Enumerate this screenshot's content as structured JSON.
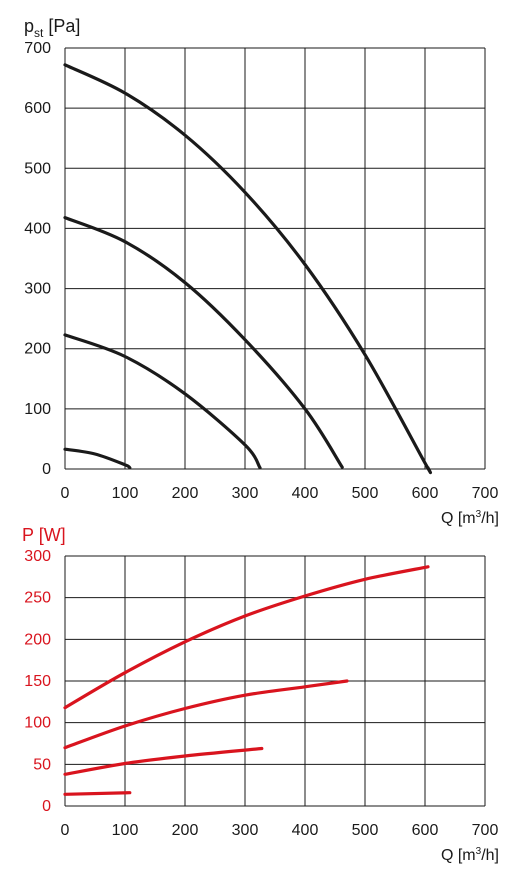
{
  "colors": {
    "pressure_curves": "#1a1a1a",
    "power_curves": "#d9141e",
    "grid": "#1a1a1a",
    "power_text": "#d9141e",
    "pressure_text": "#1a1a1a"
  },
  "chart_data": [
    {
      "type": "line",
      "title": "",
      "ylabel": {
        "main": "p",
        "sub": "st",
        "unit": " [Pa]"
      },
      "xlabel": {
        "pre": "Q [m",
        "sup": "3",
        "post": "/h]"
      },
      "xlim": [
        0,
        700
      ],
      "ylim": [
        0,
        700
      ],
      "xticks": [
        "0",
        "100",
        "200",
        "300",
        "400",
        "500",
        "600",
        "700"
      ],
      "yticks": [
        "0",
        "100",
        "200",
        "300",
        "400",
        "500",
        "600",
        "700"
      ],
      "grid": true,
      "series": [
        {
          "x": [
            0,
            100,
            200,
            300,
            400,
            500,
            600,
            605
          ],
          "y": [
            672,
            625,
            555,
            460,
            340,
            190,
            10,
            2
          ]
        },
        {
          "x": [
            0,
            100,
            200,
            300,
            400,
            462
          ],
          "y": [
            418,
            378,
            310,
            215,
            100,
            3
          ]
        },
        {
          "x": [
            0,
            100,
            200,
            300,
            325
          ],
          "y": [
            223,
            187,
            125,
            40,
            2
          ]
        },
        {
          "x": [
            0,
            50,
            100,
            108
          ],
          "y": [
            33,
            25,
            7,
            2
          ]
        }
      ]
    },
    {
      "type": "line",
      "title": "",
      "ylabel": {
        "main": "P",
        "sub": "",
        "unit": " [W]"
      },
      "xlabel": {
        "pre": "Q [m",
        "sup": "3",
        "post": "/h]"
      },
      "xlim": [
        0,
        700
      ],
      "ylim": [
        0,
        300
      ],
      "xticks": [
        "0",
        "100",
        "200",
        "300",
        "400",
        "500",
        "600",
        "700"
      ],
      "yticks": [
        "0",
        "50",
        "100",
        "150",
        "200",
        "250",
        "300"
      ],
      "grid": true,
      "series": [
        {
          "x": [
            0,
            100,
            200,
            300,
            400,
            500,
            605
          ],
          "y": [
            118,
            160,
            197,
            228,
            252,
            272,
            287
          ]
        },
        {
          "x": [
            0,
            100,
            200,
            300,
            400,
            470
          ],
          "y": [
            70,
            96,
            117,
            133,
            143,
            150
          ]
        },
        {
          "x": [
            0,
            100,
            200,
            328
          ],
          "y": [
            38,
            51,
            60,
            69
          ]
        },
        {
          "x": [
            0,
            108
          ],
          "y": [
            14,
            16
          ]
        }
      ]
    }
  ]
}
